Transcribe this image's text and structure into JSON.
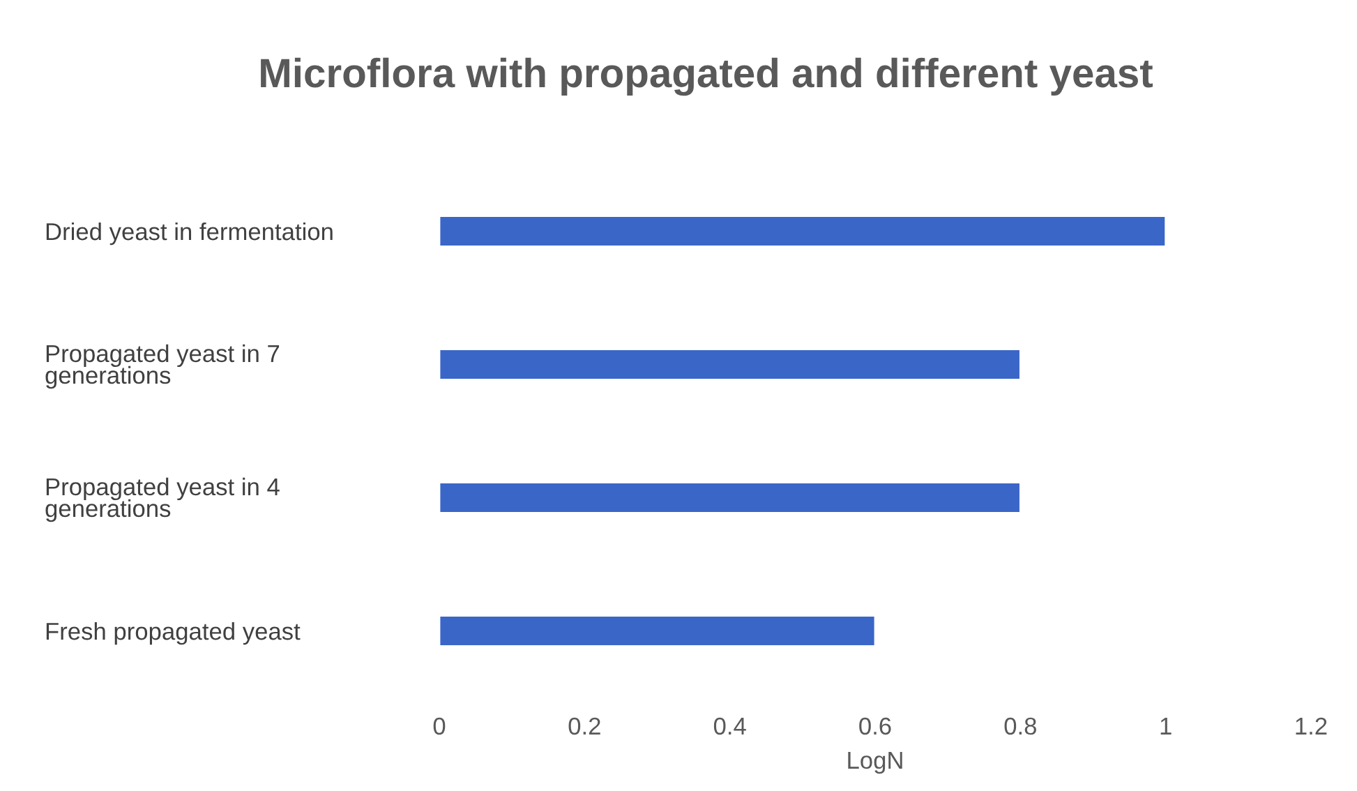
{
  "chart_data": {
    "type": "bar",
    "orientation": "horizontal",
    "title": "Microflora with propagated and different yeast",
    "xlabel": "LogN",
    "categories": [
      "Dried yeast in fermentation",
      "Propagated yeast in 7\ngenerations",
      "Propagated yeast in 4\ngenerations",
      "Fresh propagated yeast"
    ],
    "values": [
      1,
      0.8,
      0.8,
      0.6
    ],
    "color": "#3a66c8",
    "xlim": [
      0,
      1.2
    ],
    "xticks": [
      0,
      0.2,
      0.4,
      0.6,
      0.8,
      1,
      1.2
    ],
    "grid": false,
    "legend": false
  }
}
